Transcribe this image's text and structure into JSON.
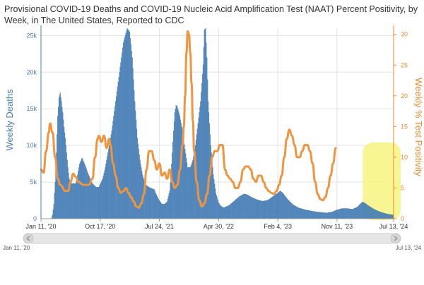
{
  "chart_data": {
    "type": "bar+line",
    "title": "Provisional COVID-19 Deaths and COVID-19 Nucleic Acid Amplification Test (NAAT) Percent Positivity, by Week, in The United States, Reported to CDC",
    "y_left_label": "Weekly Deaths",
    "y_right_label": "Weekly % Test Positivity",
    "y_left_lim": [
      0,
      26000
    ],
    "y_right_lim": [
      0,
      31
    ],
    "y_left_ticks": [
      {
        "v": 0,
        "label": "0"
      },
      {
        "v": 5000,
        "label": "5k"
      },
      {
        "v": 10000,
        "label": "10k"
      },
      {
        "v": 15000,
        "label": "15k"
      },
      {
        "v": 20000,
        "label": "20k"
      },
      {
        "v": 25000,
        "label": "25k"
      }
    ],
    "y_right_ticks": [
      {
        "v": 0,
        "label": "0"
      },
      {
        "v": 5,
        "label": "5"
      },
      {
        "v": 10,
        "label": "10"
      },
      {
        "v": 15,
        "label": "15"
      },
      {
        "v": 20,
        "label": "20"
      },
      {
        "v": 25,
        "label": "25"
      },
      {
        "v": 30,
        "label": "30"
      }
    ],
    "x_ticks": [
      {
        "w": 0,
        "label": "Jan 11, '20"
      },
      {
        "w": 92,
        "label": "Oct 17, '20"
      },
      {
        "w": 184,
        "label": "Jul 24, '21"
      },
      {
        "w": 276,
        "label": "Apr 30, '22"
      },
      {
        "w": 368,
        "label": "Feb 4, '23"
      },
      {
        "w": 460,
        "label": "Nov 11, '23"
      },
      {
        "w": 548,
        "label": "Jul 13, '24"
      }
    ],
    "x_weeks_total": 548,
    "grid": true,
    "navigator": {
      "start_label": "Jan 11, '20",
      "end_label": "Jul 13, '24"
    },
    "deaths_keypoints": [
      [
        0,
        0
      ],
      [
        8,
        0
      ],
      [
        9,
        500
      ],
      [
        10,
        2000
      ],
      [
        11,
        5000
      ],
      [
        12,
        9000
      ],
      [
        13,
        14000
      ],
      [
        14,
        16500
      ],
      [
        15,
        17200
      ],
      [
        16,
        16000
      ],
      [
        17,
        14500
      ],
      [
        18,
        12500
      ],
      [
        19,
        11000
      ],
      [
        20,
        9000
      ],
      [
        21,
        7000
      ],
      [
        22,
        5500
      ],
      [
        23,
        5000
      ],
      [
        24,
        4800
      ],
      [
        27,
        4800
      ],
      [
        28,
        5500
      ],
      [
        30,
        7500
      ],
      [
        32,
        8300
      ],
      [
        34,
        7500
      ],
      [
        37,
        6000
      ],
      [
        40,
        4800
      ],
      [
        43,
        4300
      ],
      [
        45,
        4300
      ],
      [
        48,
        5500
      ],
      [
        50,
        7000
      ],
      [
        52,
        9000
      ],
      [
        55,
        12000
      ],
      [
        58,
        16000
      ],
      [
        61,
        20000
      ],
      [
        64,
        24000
      ],
      [
        67,
        26000
      ],
      [
        69,
        25500
      ],
      [
        71,
        22000
      ],
      [
        73,
        16000
      ],
      [
        75,
        11000
      ],
      [
        77,
        8000
      ],
      [
        79,
        6000
      ],
      [
        81,
        4700
      ],
      [
        84,
        4300
      ],
      [
        88,
        4000
      ],
      [
        90,
        3200
      ],
      [
        92,
        2500
      ],
      [
        94,
        2000
      ],
      [
        96,
        2000
      ],
      [
        98,
        2300
      ],
      [
        100,
        3800
      ],
      [
        101,
        6000
      ],
      [
        102,
        9000
      ],
      [
        103,
        12000
      ],
      [
        104,
        14500
      ],
      [
        105,
        15500
      ],
      [
        106,
        15300
      ],
      [
        108,
        14000
      ],
      [
        110,
        12000
      ],
      [
        112,
        9500
      ],
      [
        114,
        7000
      ],
      [
        116,
        7000
      ],
      [
        118,
        8000
      ],
      [
        120,
        10000
      ],
      [
        122,
        13000
      ],
      [
        124,
        16000
      ],
      [
        126,
        21000
      ],
      [
        127,
        25800
      ],
      [
        128,
        26000
      ],
      [
        129,
        22000
      ],
      [
        130,
        16000
      ],
      [
        132,
        10000
      ],
      [
        134,
        6000
      ],
      [
        136,
        3500
      ],
      [
        138,
        2200
      ],
      [
        140,
        1700
      ],
      [
        142,
        1500
      ],
      [
        146,
        1800
      ],
      [
        150,
        2400
      ],
      [
        154,
        3000
      ],
      [
        158,
        3400
      ],
      [
        160,
        3300
      ],
      [
        164,
        2900
      ],
      [
        168,
        2600
      ],
      [
        172,
        2400
      ],
      [
        176,
        2500
      ],
      [
        180,
        3000
      ],
      [
        184,
        3500
      ],
      [
        186,
        3800
      ],
      [
        188,
        3500
      ],
      [
        192,
        2600
      ],
      [
        196,
        1900
      ],
      [
        200,
        1500
      ],
      [
        206,
        1200
      ],
      [
        212,
        1000
      ],
      [
        218,
        850
      ],
      [
        222,
        800
      ],
      [
        226,
        900
      ],
      [
        230,
        1200
      ],
      [
        234,
        1400
      ],
      [
        238,
        1400
      ],
      [
        242,
        1300
      ],
      [
        246,
        1600
      ],
      [
        248,
        2000
      ],
      [
        250,
        2300
      ],
      [
        252,
        2100
      ],
      [
        256,
        1600
      ],
      [
        260,
        1200
      ],
      [
        264,
        900
      ],
      [
        268,
        700
      ],
      [
        272,
        550
      ],
      [
        276,
        500
      ],
      [
        280,
        500
      ]
    ],
    "positivity_keypoints": [
      [
        0,
        8
      ],
      [
        2,
        7.5
      ],
      [
        4,
        11
      ],
      [
        6,
        14
      ],
      [
        7,
        15.5
      ],
      [
        9,
        14
      ],
      [
        11,
        10
      ],
      [
        13,
        6.5
      ],
      [
        15,
        5.5
      ],
      [
        19,
        4.5
      ],
      [
        21,
        4.5
      ],
      [
        23,
        6
      ],
      [
        25,
        7.3
      ],
      [
        27,
        6.8
      ],
      [
        29,
        6
      ],
      [
        33,
        5.5
      ],
      [
        37,
        5.5
      ],
      [
        40,
        6.5
      ],
      [
        42,
        10
      ],
      [
        44,
        13
      ],
      [
        45,
        13.5
      ],
      [
        47,
        12.5
      ],
      [
        49,
        13.5
      ],
      [
        51,
        11.5
      ],
      [
        53,
        13
      ],
      [
        54,
        12
      ],
      [
        56,
        9
      ],
      [
        58,
        7
      ],
      [
        60,
        5
      ],
      [
        62,
        4.2
      ],
      [
        64,
        4.5
      ],
      [
        66,
        5
      ],
      [
        68,
        4.2
      ],
      [
        70,
        3.5
      ],
      [
        72,
        2.8
      ],
      [
        74,
        2
      ],
      [
        76,
        1.8
      ],
      [
        78,
        2.5
      ],
      [
        80,
        4
      ],
      [
        82,
        8
      ],
      [
        84,
        11
      ],
      [
        86,
        11
      ],
      [
        88,
        9.5
      ],
      [
        90,
        8
      ],
      [
        92,
        9
      ],
      [
        94,
        7
      ],
      [
        96,
        7.5
      ],
      [
        98,
        6.5
      ],
      [
        100,
        8
      ],
      [
        102,
        6
      ],
      [
        104,
        5
      ],
      [
        106,
        5.5
      ],
      [
        108,
        8
      ],
      [
        110,
        12
      ],
      [
        111,
        15
      ],
      [
        112,
        20
      ],
      [
        113,
        27
      ],
      [
        114,
        30.5
      ],
      [
        115,
        30
      ],
      [
        116,
        27
      ],
      [
        117,
        22
      ],
      [
        118,
        16
      ],
      [
        119,
        11
      ],
      [
        121,
        6
      ],
      [
        123,
        3
      ],
      [
        125,
        2
      ],
      [
        127,
        2.5
      ],
      [
        129,
        4
      ],
      [
        131,
        7
      ],
      [
        133,
        10
      ],
      [
        135,
        11
      ],
      [
        137,
        11
      ],
      [
        139,
        12
      ],
      [
        141,
        12
      ],
      [
        143,
        8
      ],
      [
        145,
        7
      ],
      [
        147,
        6.5
      ],
      [
        149,
        6
      ],
      [
        151,
        5
      ],
      [
        153,
        5
      ],
      [
        155,
        6
      ],
      [
        157,
        8
      ],
      [
        159,
        8.5
      ],
      [
        161,
        8.5
      ],
      [
        163,
        8
      ],
      [
        165,
        6.5
      ],
      [
        167,
        6
      ],
      [
        169,
        7
      ],
      [
        171,
        7
      ],
      [
        173,
        6
      ],
      [
        175,
        5
      ],
      [
        177,
        4.5
      ],
      [
        179,
        4.2
      ],
      [
        181,
        4
      ],
      [
        183,
        4.5
      ],
      [
        185,
        5.5
      ],
      [
        187,
        7
      ],
      [
        189,
        10
      ],
      [
        191,
        13
      ],
      [
        193,
        14.5
      ],
      [
        195,
        13.5
      ],
      [
        197,
        12
      ],
      [
        199,
        10
      ],
      [
        201,
        10
      ],
      [
        203,
        11
      ],
      [
        205,
        12
      ],
      [
        207,
        12
      ],
      [
        209,
        11
      ],
      [
        211,
        9
      ],
      [
        213,
        6
      ],
      [
        215,
        4
      ],
      [
        217,
        3.2
      ],
      [
        219,
        3
      ],
      [
        221,
        3.5
      ],
      [
        223,
        5
      ],
      [
        225,
        7
      ],
      [
        227,
        9
      ],
      [
        229,
        11.5
      ]
    ]
  },
  "colors": {
    "bars": "#4d86c0",
    "bar_edge": "#3a6fa3",
    "line": "#f0953f",
    "highlight": "#f6f580",
    "grid": "#e2e2e2",
    "left_axis": "#4a7fb5",
    "right_axis": "#ee8a2f"
  }
}
